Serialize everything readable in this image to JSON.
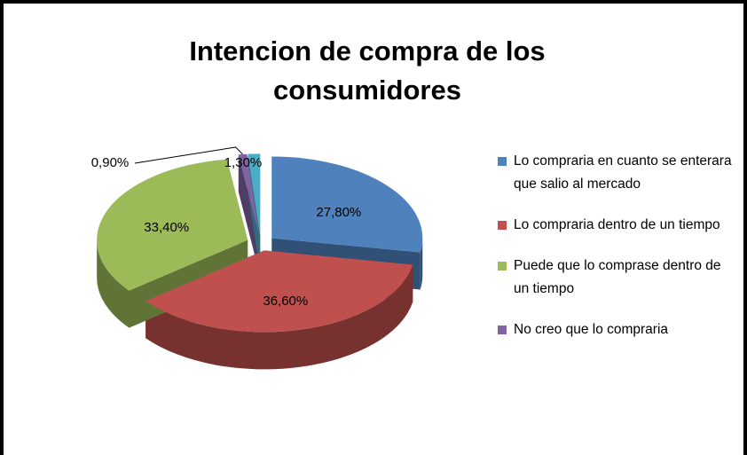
{
  "chart_data": {
    "type": "pie",
    "title": "Intencion de compra de los consumidores",
    "categories": [
      "Lo compraria en cuanto se enterara que salio al mercado",
      "Lo compraria dentro de un tiempo",
      "Puede que lo comprase dentro de un tiempo",
      "No creo que lo compraria",
      null
    ],
    "values": [
      27.8,
      36.6,
      33.4,
      0.9,
      1.3
    ],
    "value_labels": [
      "27,80%",
      "36,60%",
      "33,40%",
      "0,90%",
      "1,30%"
    ],
    "colors": [
      "#4f81bd",
      "#c0504d",
      "#9bbb59",
      "#8064a2",
      "#4bacc6"
    ],
    "legend": "right"
  }
}
